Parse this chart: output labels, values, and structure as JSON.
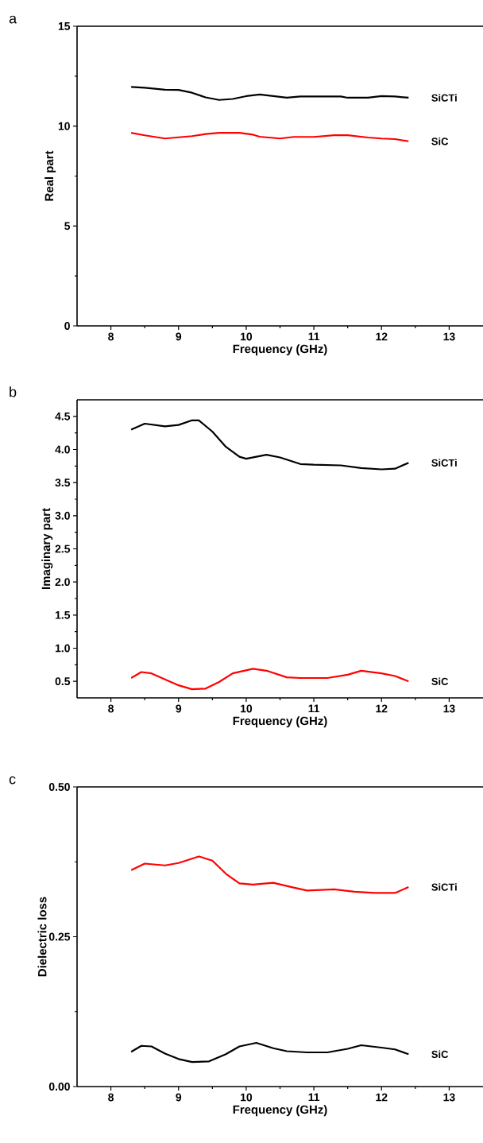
{
  "chart_data": [
    {
      "type": "line",
      "annotations": [
        "a"
      ],
      "xlabel": "Frequency (GHz)",
      "ylabel": "Real part",
      "xlim": [
        7.5,
        13.5
      ],
      "xticks": [
        8,
        9,
        10,
        11,
        12,
        13
      ],
      "ylim": [
        0,
        15
      ],
      "yticks": [
        0,
        5,
        10,
        15
      ],
      "series": [
        {
          "name": "SiCTi",
          "color": "#000000",
          "x": [
            8.3,
            8.5,
            8.8,
            9.0,
            9.2,
            9.4,
            9.6,
            9.8,
            10.0,
            10.2,
            10.4,
            10.6,
            10.8,
            11.0,
            11.4,
            11.5,
            11.8,
            12.0,
            12.2,
            12.4
          ],
          "values": [
            11.96,
            11.92,
            11.82,
            11.81,
            11.67,
            11.44,
            11.31,
            11.36,
            11.5,
            11.58,
            11.5,
            11.42,
            11.48,
            11.48,
            11.48,
            11.42,
            11.42,
            11.5,
            11.48,
            11.42
          ]
        },
        {
          "name": "SiC",
          "color": "#ff0000",
          "x": [
            8.3,
            8.5,
            8.8,
            9.0,
            9.2,
            9.4,
            9.6,
            9.9,
            10.1,
            10.2,
            10.5,
            10.7,
            11.0,
            11.3,
            11.5,
            11.8,
            12.0,
            12.2,
            12.4
          ],
          "values": [
            9.66,
            9.54,
            9.38,
            9.44,
            9.5,
            9.6,
            9.66,
            9.66,
            9.57,
            9.47,
            9.38,
            9.46,
            9.46,
            9.54,
            9.54,
            9.43,
            9.38,
            9.35,
            9.24
          ]
        }
      ]
    },
    {
      "type": "line",
      "annotations": [
        "b"
      ],
      "xlabel": "Frequency (GHz)",
      "ylabel": "Imaginary part",
      "xlim": [
        7.5,
        13.5
      ],
      "xticks": [
        8,
        9,
        10,
        11,
        12,
        13
      ],
      "ylim": [
        0.25,
        4.75
      ],
      "yticks": [
        {
          "value": 0.5,
          "label": "0.5"
        },
        {
          "value": 1,
          "label": "1.0"
        },
        {
          "value": 1.5,
          "label": "1.5"
        },
        {
          "value": 2,
          "label": "2.0"
        },
        {
          "value": 2.5,
          "label": "2.5"
        },
        {
          "value": 3,
          "label": "3.0"
        },
        {
          "value": 3.5,
          "label": "3.5"
        },
        {
          "value": 4,
          "label": "4.0"
        },
        {
          "value": 4.5,
          "label": "4.5"
        }
      ],
      "series": [
        {
          "name": "SiCTi",
          "color": "#000000",
          "x": [
            8.3,
            8.5,
            8.8,
            9.0,
            9.2,
            9.3,
            9.5,
            9.7,
            9.9,
            10.0,
            10.3,
            10.5,
            10.8,
            11.0,
            11.4,
            11.7,
            12.0,
            12.2,
            12.4
          ],
          "values": [
            4.3,
            4.39,
            4.35,
            4.37,
            4.44,
            4.44,
            4.27,
            4.04,
            3.89,
            3.86,
            3.92,
            3.88,
            3.78,
            3.77,
            3.76,
            3.72,
            3.7,
            3.71,
            3.8
          ]
        },
        {
          "name": "SiC",
          "color": "#ff0000",
          "x": [
            8.3,
            8.45,
            8.6,
            8.8,
            9.0,
            9.2,
            9.4,
            9.6,
            9.8,
            10.1,
            10.3,
            10.6,
            10.8,
            11.2,
            11.5,
            11.7,
            12.0,
            12.2,
            12.4
          ],
          "values": [
            0.55,
            0.64,
            0.62,
            0.53,
            0.44,
            0.38,
            0.39,
            0.49,
            0.62,
            0.69,
            0.66,
            0.56,
            0.55,
            0.55,
            0.6,
            0.66,
            0.62,
            0.58,
            0.5
          ]
        }
      ]
    },
    {
      "type": "line",
      "annotations": [
        "c"
      ],
      "xlabel": "Frequency (GHz)",
      "ylabel": "Dielectric loss",
      "xlim": [
        7.5,
        13.5
      ],
      "xticks": [
        8,
        9,
        10,
        11,
        12,
        13
      ],
      "ylim": [
        0,
        0.5
      ],
      "yticks": [
        {
          "value": 0,
          "label": "0.00"
        },
        {
          "value": 0.25,
          "label": "0.25"
        },
        {
          "value": 0.5,
          "label": "0.50"
        }
      ],
      "series": [
        {
          "name": "SiCTi",
          "color": "#ff0000",
          "x": [
            8.3,
            8.5,
            8.8,
            9.0,
            9.3,
            9.5,
            9.7,
            9.9,
            10.1,
            10.4,
            10.7,
            10.9,
            11.3,
            11.6,
            11.9,
            12.2,
            12.4
          ],
          "values": [
            0.361,
            0.372,
            0.369,
            0.373,
            0.384,
            0.377,
            0.355,
            0.339,
            0.337,
            0.34,
            0.332,
            0.327,
            0.329,
            0.325,
            0.323,
            0.323,
            0.333
          ]
        },
        {
          "name": "SiC",
          "color": "#000000",
          "x": [
            8.3,
            8.45,
            8.6,
            8.8,
            9.0,
            9.2,
            9.45,
            9.7,
            9.9,
            10.15,
            10.4,
            10.6,
            10.9,
            11.2,
            11.5,
            11.7,
            12.0,
            12.2,
            12.4
          ],
          "values": [
            0.058,
            0.068,
            0.067,
            0.055,
            0.046,
            0.041,
            0.042,
            0.054,
            0.067,
            0.073,
            0.064,
            0.059,
            0.057,
            0.057,
            0.063,
            0.069,
            0.065,
            0.062,
            0.054
          ]
        }
      ]
    }
  ]
}
